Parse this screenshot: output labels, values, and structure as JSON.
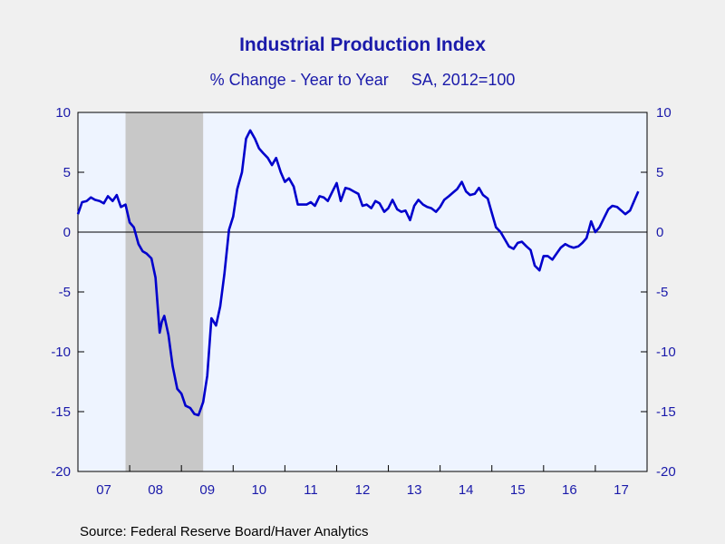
{
  "chart_data": {
    "type": "line",
    "title": "Industrial Production Index",
    "subtitle": "% Change - Year to Year     SA, 2012=100",
    "source": "Source:  Federal Reserve Board/Haver Analytics",
    "ylim": [
      -20,
      10
    ],
    "yticks": [
      10,
      5,
      0,
      -5,
      -10,
      -15,
      -20
    ],
    "xlim": [
      2007.0,
      2018.0
    ],
    "xtick_labels": [
      "07",
      "08",
      "09",
      "10",
      "11",
      "12",
      "13",
      "14",
      "15",
      "16",
      "17"
    ],
    "grid": false,
    "zero_line": true,
    "recession_shading": [
      2007.92,
      2009.42
    ],
    "colors": {
      "line": "#0000cc",
      "shade": "#c8c8c8",
      "plot_bg": "#eef4ff",
      "text": "#1a1aaa"
    },
    "series": [
      {
        "x": [
          2007.0,
          2007.04,
          2007.08,
          2007.17,
          2007.25,
          2007.33,
          2007.42,
          2007.5,
          2007.58,
          2007.67,
          2007.75,
          2007.83,
          2007.92,
          2008.0,
          2008.08,
          2008.17,
          2008.25,
          2008.33,
          2008.42,
          2008.5,
          2008.58,
          2008.62,
          2008.67,
          2008.75,
          2008.83,
          2008.92,
          2009.0,
          2009.08,
          2009.17,
          2009.25,
          2009.33,
          2009.42,
          2009.5,
          2009.58,
          2009.67,
          2009.75,
          2009.83,
          2009.92,
          2010.0,
          2010.08,
          2010.17,
          2010.25,
          2010.33,
          2010.42,
          2010.5,
          2010.58,
          2010.67,
          2010.75,
          2010.83,
          2010.92,
          2011.0,
          2011.08,
          2011.17,
          2011.25,
          2011.33,
          2011.42,
          2011.5,
          2011.58,
          2011.67,
          2011.75,
          2011.83,
          2011.92,
          2012.0,
          2012.08,
          2012.17,
          2012.25,
          2012.33,
          2012.42,
          2012.5,
          2012.58,
          2012.67,
          2012.75,
          2012.83,
          2012.92,
          2013.0,
          2013.08,
          2013.17,
          2013.25,
          2013.33,
          2013.42,
          2013.5,
          2013.58,
          2013.67,
          2013.75,
          2013.83,
          2013.92,
          2014.0,
          2014.08,
          2014.17,
          2014.25,
          2014.33,
          2014.42,
          2014.5,
          2014.58,
          2014.67,
          2014.75,
          2014.83,
          2014.92,
          2015.0,
          2015.08,
          2015.17,
          2015.25,
          2015.33,
          2015.42,
          2015.5,
          2015.58,
          2015.67,
          2015.75,
          2015.83,
          2015.92,
          2016.0,
          2016.08,
          2016.17,
          2016.25,
          2016.33,
          2016.42,
          2016.5,
          2016.58,
          2016.67,
          2016.75,
          2016.83,
          2016.92,
          2017.0,
          2017.08,
          2017.17,
          2017.25,
          2017.33,
          2017.42,
          2017.5,
          2017.58,
          2017.67,
          2017.75,
          2017.83
        ],
        "y": [
          1.5,
          2.0,
          2.5,
          2.6,
          2.9,
          2.7,
          2.6,
          2.4,
          3.0,
          2.6,
          3.1,
          2.1,
          2.3,
          0.8,
          0.4,
          -1.0,
          -1.6,
          -1.8,
          -2.2,
          -3.8,
          -8.4,
          -7.5,
          -7.0,
          -8.6,
          -11.2,
          -13.1,
          -13.5,
          -14.5,
          -14.7,
          -15.2,
          -15.3,
          -14.2,
          -12.0,
          -7.2,
          -7.8,
          -6.2,
          -3.5,
          0.2,
          1.3,
          3.6,
          5.0,
          7.8,
          8.5,
          7.8,
          7.0,
          6.6,
          6.2,
          5.6,
          6.2,
          5.0,
          4.2,
          4.5,
          3.8,
          2.3,
          2.3,
          2.3,
          2.5,
          2.2,
          3.0,
          2.9,
          2.6,
          3.4,
          4.1,
          2.6,
          3.7,
          3.6,
          3.4,
          3.2,
          2.2,
          2.3,
          2.0,
          2.6,
          2.4,
          1.7,
          2.0,
          2.7,
          1.9,
          1.7,
          1.8,
          1.0,
          2.2,
          2.7,
          2.3,
          2.1,
          2.0,
          1.7,
          2.1,
          2.7,
          3.0,
          3.3,
          3.6,
          4.2,
          3.4,
          3.1,
          3.2,
          3.7,
          3.1,
          2.8,
          1.6,
          0.4,
          0.0,
          -0.6,
          -1.2,
          -1.4,
          -0.9,
          -0.8,
          -1.2,
          -1.5,
          -2.8,
          -3.2,
          -2.0,
          -2.0,
          -2.3,
          -1.8,
          -1.3,
          -1.0,
          -1.2,
          -1.3,
          -1.2,
          -0.9,
          -0.5,
          0.9,
          0.0,
          0.4,
          1.2,
          1.9,
          2.2,
          2.1,
          1.8,
          1.5,
          1.8,
          2.6,
          3.4
        ]
      }
    ]
  }
}
